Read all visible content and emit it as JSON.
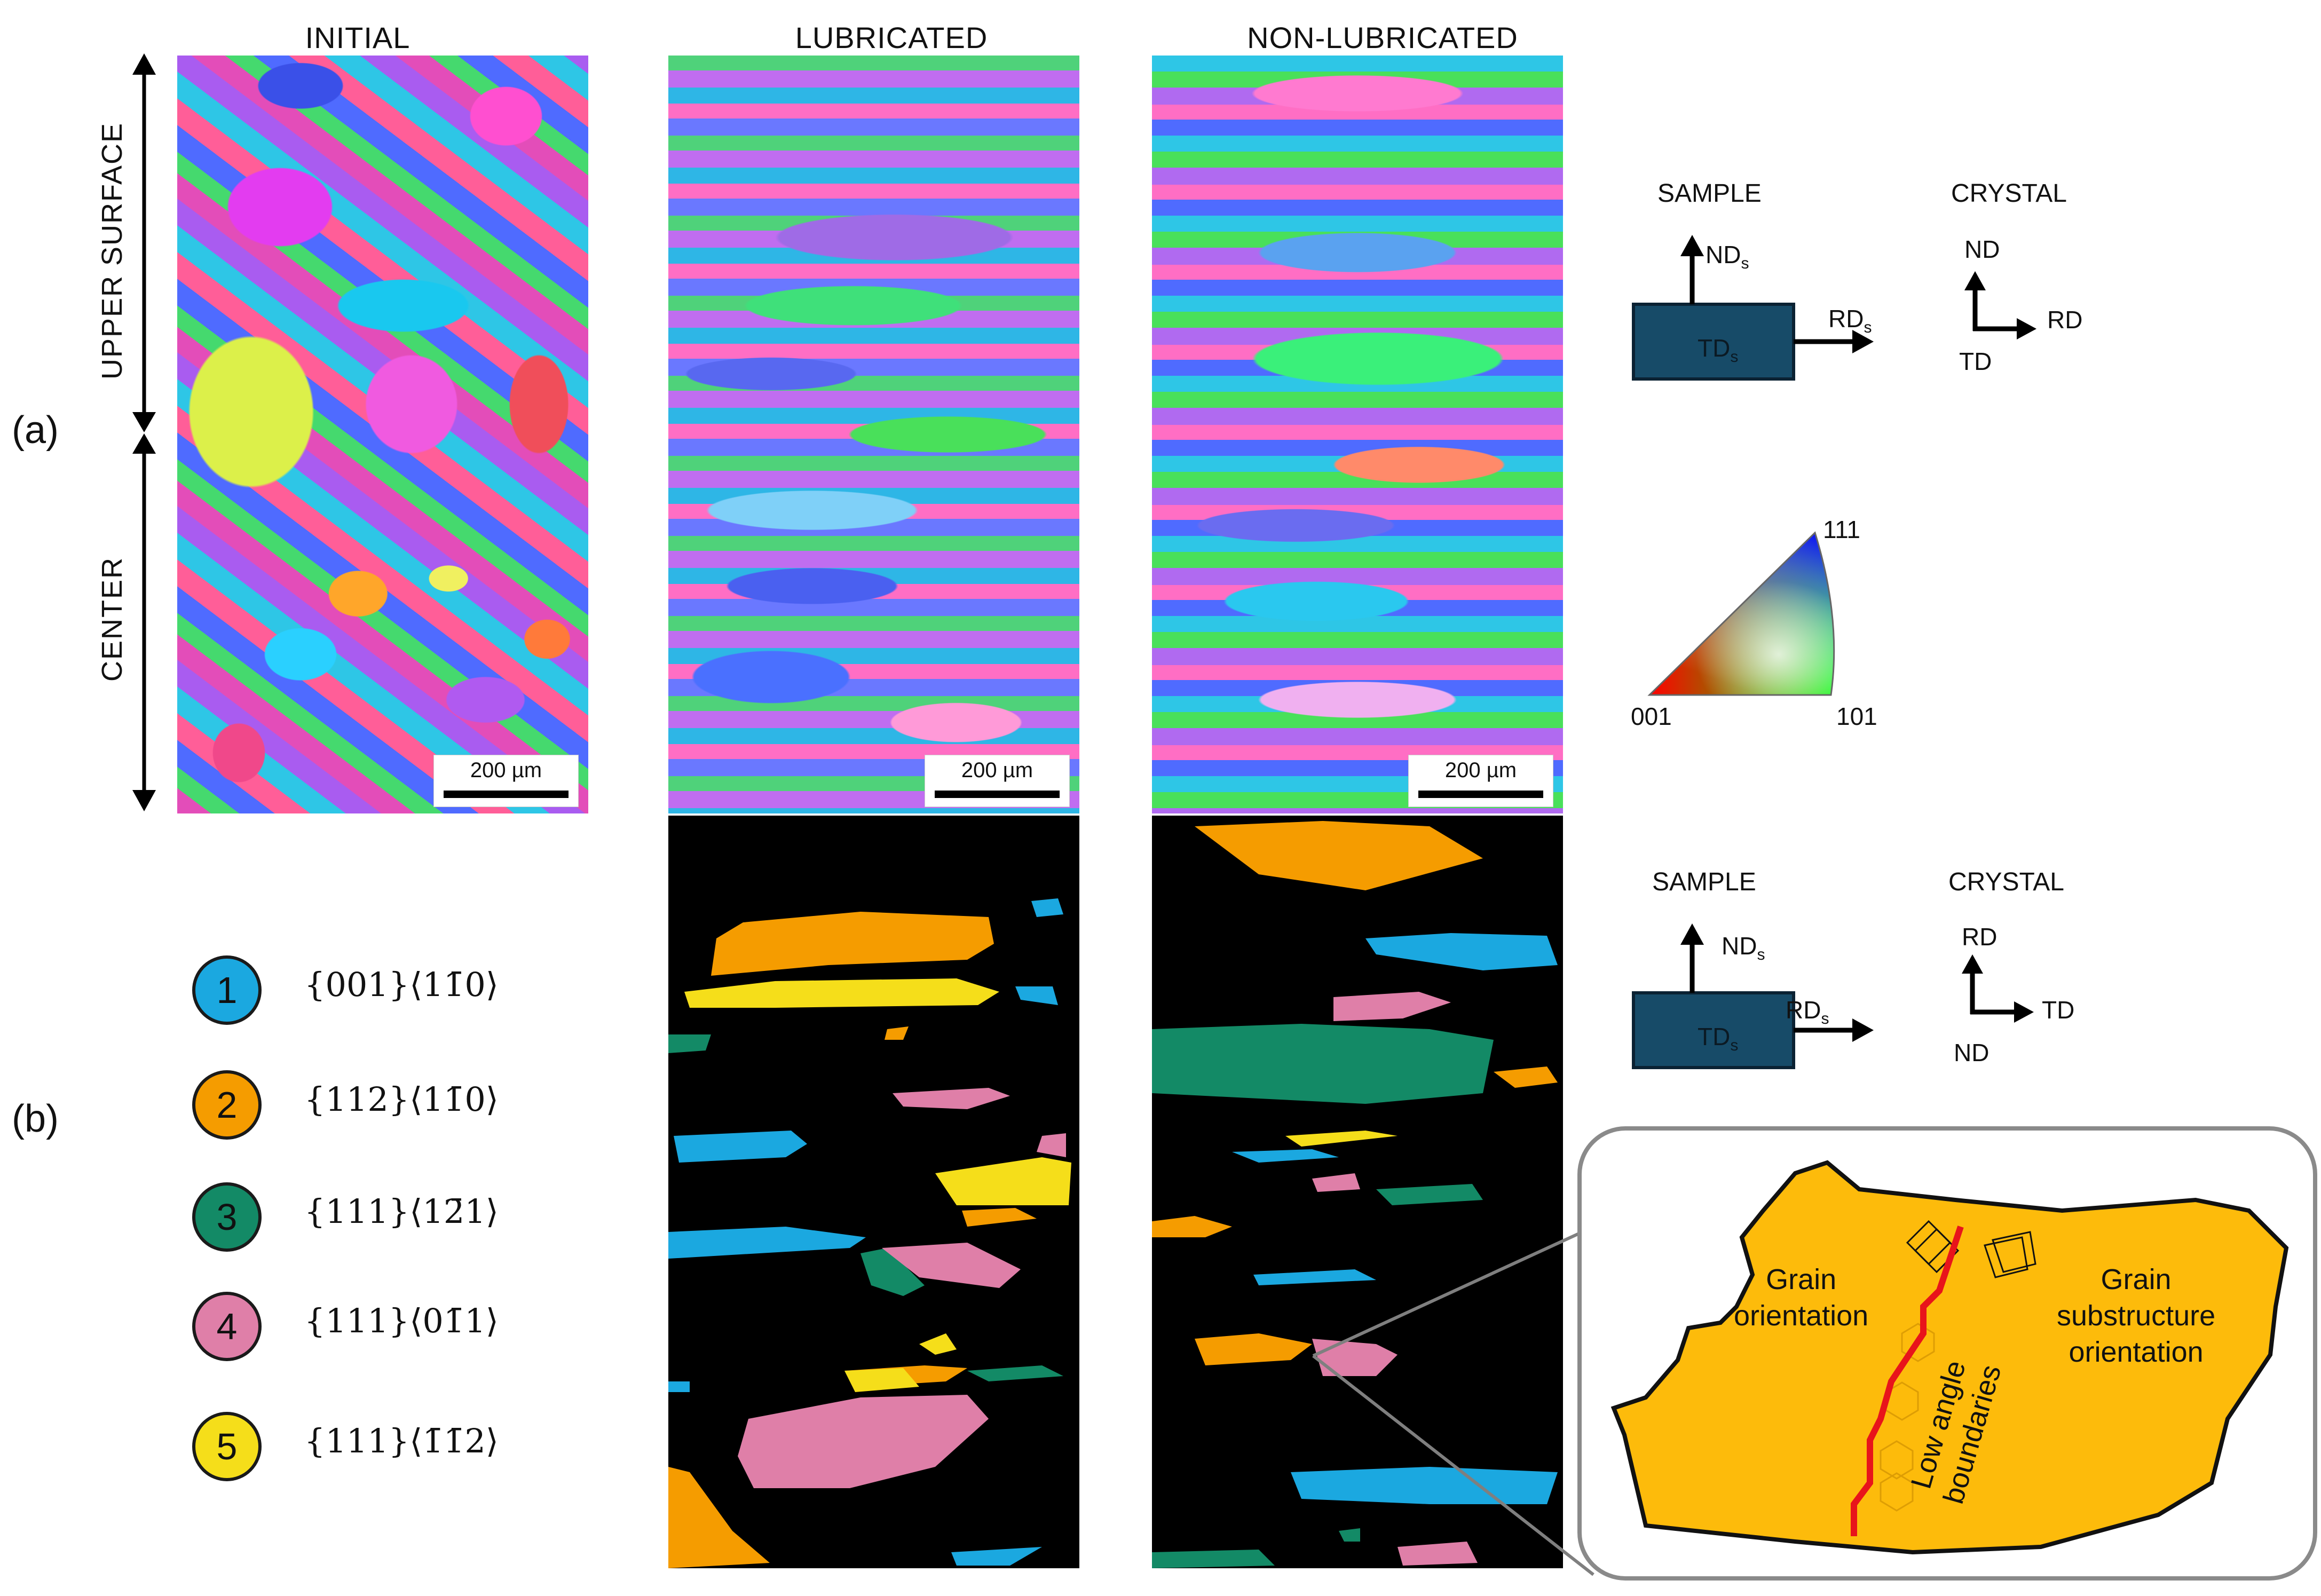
{
  "columns": {
    "initial": "INITIAL",
    "lubricated": "LUBRICATED",
    "non_lubricated": "NON-LUBRICATED"
  },
  "panel_labels": {
    "a": "(a)",
    "b": "(b)"
  },
  "side_labels": {
    "upper": "UPPER SURFACE",
    "center": "CENTER"
  },
  "scale_bar": "200 µm",
  "frame_a": {
    "sample": {
      "title": "SAMPLE",
      "nd": "ND",
      "rd": "RD",
      "td": "TD",
      "sub": "s"
    },
    "crystal": {
      "title": "CRYSTAL",
      "nd": "ND",
      "rd": "RD",
      "td": "TD"
    }
  },
  "frame_b": {
    "sample": {
      "title": "SAMPLE",
      "nd": "ND",
      "rd": "RD",
      "td": "TD",
      "sub": "s"
    },
    "crystal": {
      "title": "CRYSTAL",
      "rd": "RD",
      "td": "TD",
      "nd": "ND"
    }
  },
  "ipf": {
    "corner_111": "111",
    "corner_001": "001",
    "corner_101": "101"
  },
  "legend": [
    {
      "num": "1",
      "label": "{001}⟨11̄0⟩",
      "color": "#1ba8e0"
    },
    {
      "num": "2",
      "label": "{112}⟨11̄0⟩",
      "color": "#f59c00"
    },
    {
      "num": "3",
      "label": "{111}⟨12̄1⟩",
      "color": "#138a66"
    },
    {
      "num": "4",
      "label": "{111}⟨01̄1⟩",
      "color": "#df7fa8"
    },
    {
      "num": "5",
      "label": "{111}⟨1̄1̄2⟩",
      "color": "#f5de1a"
    }
  ],
  "zoom": {
    "grain_orientation": [
      "Grain",
      "orientation"
    ],
    "substructure_orientation": [
      "Grain",
      "substructure",
      "orientation"
    ],
    "boundaries": [
      "Low angle",
      "boundaries"
    ],
    "grain_color": "#fdbb0b",
    "boundary_color": "#e8141b"
  }
}
